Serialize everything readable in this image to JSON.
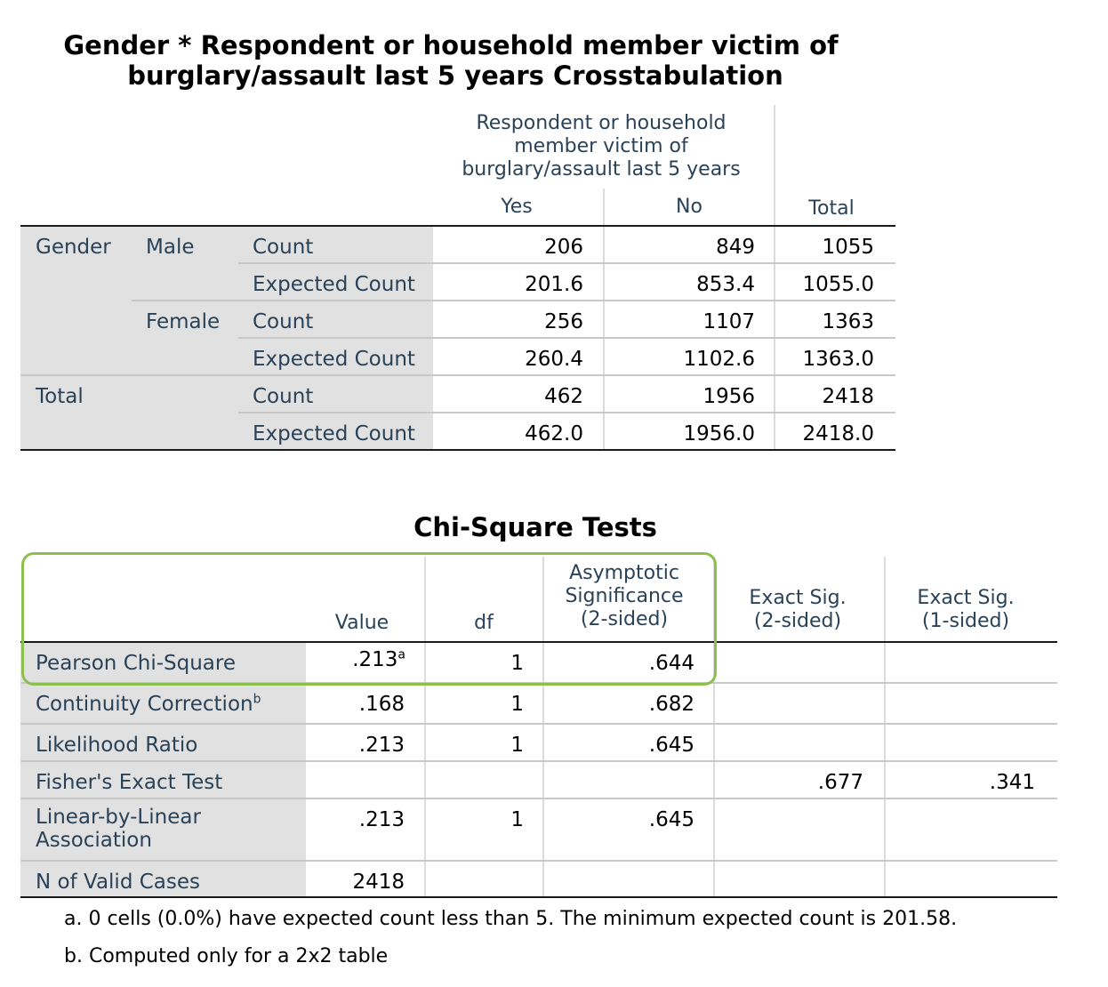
{
  "crosstab": {
    "title_line1": "Gender * Respondent or household member victim of",
    "title_line2": "burglary/assault last 5 years Crosstabulation",
    "col_group_header_line1": "Respondent or household",
    "col_group_header_line2": "member victim of",
    "col_group_header_line3": "burglary/assault last 5 years",
    "col_yes": "Yes",
    "col_no": "No",
    "col_total": "Total",
    "row_var": "Gender",
    "male": "Male",
    "female": "Female",
    "total": "Total",
    "count_label": "Count",
    "expected_label": "Expected Count",
    "rows": [
      {
        "yes": "206",
        "no": "849",
        "total": "1055"
      },
      {
        "yes": "201.6",
        "no": "853.4",
        "total": "1055.0"
      },
      {
        "yes": "256",
        "no": "1107",
        "total": "1363"
      },
      {
        "yes": "260.4",
        "no": "1102.6",
        "total": "1363.0"
      },
      {
        "yes": "462",
        "no": "1956",
        "total": "2418"
      },
      {
        "yes": "462.0",
        "no": "1956.0",
        "total": "2418.0"
      }
    ]
  },
  "chisq": {
    "title": "Chi-Square Tests",
    "col_value": "Value",
    "col_df": "df",
    "col_asymp_line1": "Asymptotic",
    "col_asymp_line2": "Significance",
    "col_asymp_line3": "(2-sided)",
    "col_exact2_line1": "Exact Sig.",
    "col_exact2_line2": "(2-sided)",
    "col_exact1_line1": "Exact Sig.",
    "col_exact1_line2": "(1-sided)",
    "rows": [
      {
        "label": "Pearson Chi-Square",
        "sup": "",
        "value": ".213",
        "value_sup": "a",
        "df": "1",
        "asymp": ".644",
        "exact2": "",
        "exact1": ""
      },
      {
        "label": "Continuity Correction",
        "sup": "b",
        "value": ".168",
        "value_sup": "",
        "df": "1",
        "asymp": ".682",
        "exact2": "",
        "exact1": ""
      },
      {
        "label": "Likelihood Ratio",
        "sup": "",
        "value": ".213",
        "value_sup": "",
        "df": "1",
        "asymp": ".645",
        "exact2": "",
        "exact1": ""
      },
      {
        "label": "Fisher's Exact Test",
        "sup": "",
        "value": "",
        "value_sup": "",
        "df": "",
        "asymp": "",
        "exact2": ".677",
        "exact1": ".341"
      },
      {
        "label_line1": "Linear-by-Linear",
        "label_line2": "Association",
        "value": ".213",
        "value_sup": "",
        "df": "1",
        "asymp": ".645",
        "exact2": "",
        "exact1": ""
      },
      {
        "label": "N of Valid Cases",
        "sup": "",
        "value": "2418",
        "value_sup": "",
        "df": "",
        "asymp": "",
        "exact2": "",
        "exact1": ""
      }
    ],
    "footnote_a": "a. 0 cells (0.0%) have expected count less than 5. The minimum expected count is 201.58.",
    "footnote_b": "b. Computed only for a 2x2 table",
    "highlight_color": "#8bbf4e"
  }
}
